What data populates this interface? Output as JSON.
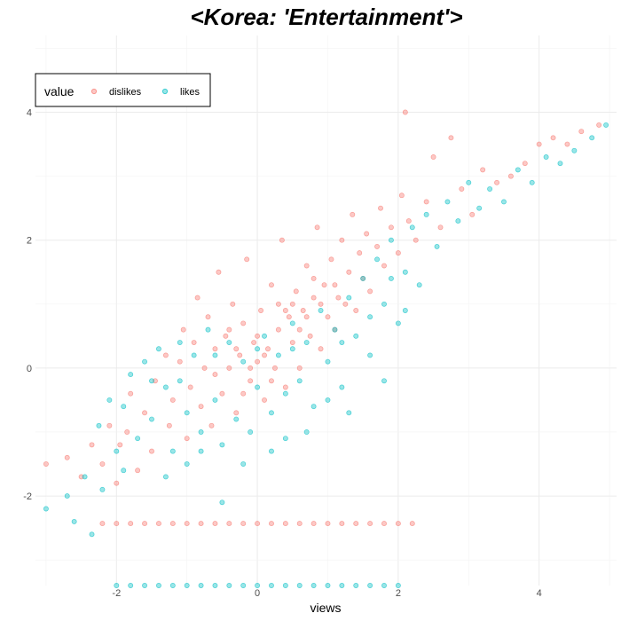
{
  "chart_data": {
    "type": "scatter",
    "title": "<Korea: 'Entertainment'>",
    "xlabel": "views",
    "ylabel": "",
    "xlim": [
      -3.15,
      5.1
    ],
    "ylim": [
      -3.4,
      5.2
    ],
    "x_ticks": [
      -2,
      0,
      2,
      4
    ],
    "y_ticks": [
      -2,
      0,
      2,
      4
    ],
    "x_tick_labels": [
      "-2",
      "0",
      "2",
      "4"
    ],
    "y_tick_labels": [
      "-2",
      "0",
      "2",
      "4"
    ],
    "grid": true,
    "legend": {
      "title": "value",
      "position": "top-left"
    },
    "series": [
      {
        "name": "dislikes",
        "color": "#F8766D",
        "points": [
          [
            -3.0,
            -1.5
          ],
          [
            -2.7,
            -1.4
          ],
          [
            -2.5,
            -1.7
          ],
          [
            -2.35,
            -1.2
          ],
          [
            -2.2,
            -1.5
          ],
          [
            -2.1,
            -0.9
          ],
          [
            -2.0,
            -1.8
          ],
          [
            -1.95,
            -1.2
          ],
          [
            -1.85,
            -1.0
          ],
          [
            -1.8,
            -0.4
          ],
          [
            -1.7,
            -1.6
          ],
          [
            -1.6,
            -0.7
          ],
          [
            -1.5,
            -1.3
          ],
          [
            -1.45,
            -0.2
          ],
          [
            -1.3,
            0.2
          ],
          [
            -1.25,
            -0.9
          ],
          [
            -1.2,
            -0.5
          ],
          [
            -1.1,
            0.1
          ],
          [
            -1.05,
            0.6
          ],
          [
            -1.0,
            -1.1
          ],
          [
            -0.95,
            -0.3
          ],
          [
            -0.9,
            0.4
          ],
          [
            -0.85,
            1.1
          ],
          [
            -0.8,
            -0.6
          ],
          [
            -0.75,
            0.0
          ],
          [
            -0.7,
            0.8
          ],
          [
            -0.65,
            -0.9
          ],
          [
            -0.6,
            0.3
          ],
          [
            -0.55,
            1.5
          ],
          [
            -0.5,
            -0.4
          ],
          [
            -0.45,
            0.5
          ],
          [
            -0.4,
            0.0
          ],
          [
            -0.35,
            1.0
          ],
          [
            -0.3,
            -0.7
          ],
          [
            -0.25,
            0.2
          ],
          [
            -0.2,
            0.7
          ],
          [
            -0.15,
            1.7
          ],
          [
            -0.1,
            -0.2
          ],
          [
            -0.05,
            0.4
          ],
          [
            0.0,
            0.1
          ],
          [
            0.05,
            0.9
          ],
          [
            0.1,
            -0.5
          ],
          [
            0.15,
            0.3
          ],
          [
            0.2,
            1.3
          ],
          [
            0.25,
            0.0
          ],
          [
            0.3,
            0.6
          ],
          [
            0.35,
            2.0
          ],
          [
            0.4,
            -0.3
          ],
          [
            0.45,
            0.8
          ],
          [
            0.5,
            0.4
          ],
          [
            0.55,
            1.2
          ],
          [
            0.6,
            0.0
          ],
          [
            0.65,
            0.9
          ],
          [
            0.7,
            1.6
          ],
          [
            0.75,
            0.5
          ],
          [
            0.8,
            1.1
          ],
          [
            0.85,
            2.2
          ],
          [
            0.9,
            0.3
          ],
          [
            0.95,
            1.3
          ],
          [
            1.0,
            0.8
          ],
          [
            1.05,
            1.7
          ],
          [
            1.1,
            0.6
          ],
          [
            1.15,
            1.1
          ],
          [
            1.2,
            2.0
          ],
          [
            1.25,
            1.0
          ],
          [
            1.3,
            1.5
          ],
          [
            1.35,
            2.4
          ],
          [
            1.4,
            0.9
          ],
          [
            1.45,
            1.8
          ],
          [
            1.5,
            1.4
          ],
          [
            1.55,
            2.1
          ],
          [
            1.6,
            1.2
          ],
          [
            1.7,
            1.9
          ],
          [
            1.75,
            2.5
          ],
          [
            1.8,
            1.6
          ],
          [
            1.9,
            2.2
          ],
          [
            2.0,
            1.8
          ],
          [
            2.05,
            2.7
          ],
          [
            2.1,
            4.0
          ],
          [
            2.15,
            2.3
          ],
          [
            2.25,
            2.0
          ],
          [
            2.4,
            2.6
          ],
          [
            2.5,
            3.3
          ],
          [
            2.6,
            2.2
          ],
          [
            2.75,
            3.6
          ],
          [
            2.9,
            2.8
          ],
          [
            3.05,
            2.4
          ],
          [
            3.2,
            3.1
          ],
          [
            3.4,
            2.9
          ],
          [
            3.6,
            3.0
          ],
          [
            3.8,
            3.2
          ],
          [
            4.0,
            3.5
          ],
          [
            4.2,
            3.6
          ],
          [
            4.4,
            3.5
          ],
          [
            4.6,
            3.7
          ],
          [
            4.85,
            3.8
          ],
          [
            -0.6,
            -0.1
          ],
          [
            -0.3,
            0.3
          ],
          [
            0.0,
            0.5
          ],
          [
            0.2,
            -0.2
          ],
          [
            0.4,
            0.9
          ],
          [
            0.6,
            0.6
          ],
          [
            0.8,
            1.4
          ],
          [
            -0.2,
            -0.4
          ],
          [
            -0.4,
            0.6
          ],
          [
            0.1,
            0.2
          ],
          [
            0.3,
            1.0
          ],
          [
            0.5,
            1.0
          ],
          [
            0.7,
            0.8
          ],
          [
            -0.1,
            0.0
          ],
          [
            0.9,
            1.0
          ],
          [
            1.1,
            1.3
          ]
        ],
        "floor_row": {
          "y": -2.43,
          "x": [
            -2.2,
            -2.0,
            -1.8,
            -1.6,
            -1.4,
            -1.2,
            -1.0,
            -0.8,
            -0.6,
            -0.4,
            -0.2,
            0.0,
            0.2,
            0.4,
            0.6,
            0.8,
            1.0,
            1.2,
            1.4,
            1.6,
            1.8,
            2.0,
            2.2
          ]
        }
      },
      {
        "name": "likes",
        "color": "#00BFC4",
        "points": [
          [
            -3.0,
            -2.2
          ],
          [
            -2.7,
            -2.0
          ],
          [
            -2.45,
            -1.7
          ],
          [
            -2.35,
            -2.6
          ],
          [
            -2.25,
            -0.9
          ],
          [
            -2.1,
            -0.5
          ],
          [
            -2.0,
            -1.3
          ],
          [
            -1.9,
            -0.6
          ],
          [
            -1.8,
            -0.1
          ],
          [
            -1.7,
            -1.1
          ],
          [
            -1.6,
            0.1
          ],
          [
            -1.5,
            -0.8
          ],
          [
            -1.4,
            0.3
          ],
          [
            -1.3,
            -0.3
          ],
          [
            -1.2,
            -1.3
          ],
          [
            -1.1,
            0.4
          ],
          [
            -1.0,
            -0.7
          ],
          [
            -0.9,
            0.2
          ],
          [
            -0.8,
            -1.0
          ],
          [
            -0.7,
            0.6
          ],
          [
            -0.6,
            -0.5
          ],
          [
            -0.5,
            -1.2
          ],
          [
            -0.4,
            0.4
          ],
          [
            -0.3,
            -0.8
          ],
          [
            -0.2,
            0.1
          ],
          [
            -0.1,
            -1.0
          ],
          [
            0.0,
            -0.3
          ],
          [
            0.1,
            0.5
          ],
          [
            0.2,
            -0.7
          ],
          [
            0.3,
            0.2
          ],
          [
            0.4,
            -0.4
          ],
          [
            0.5,
            0.7
          ],
          [
            0.6,
            -0.2
          ],
          [
            0.7,
            0.4
          ],
          [
            0.8,
            -0.6
          ],
          [
            0.9,
            0.9
          ],
          [
            1.0,
            0.1
          ],
          [
            1.1,
            0.6
          ],
          [
            1.2,
            -0.3
          ],
          [
            1.3,
            1.1
          ],
          [
            1.4,
            0.5
          ],
          [
            1.5,
            1.4
          ],
          [
            1.6,
            0.8
          ],
          [
            1.7,
            1.7
          ],
          [
            1.8,
            1.0
          ],
          [
            1.9,
            2.0
          ],
          [
            2.0,
            0.7
          ],
          [
            2.1,
            1.5
          ],
          [
            2.2,
            2.2
          ],
          [
            2.3,
            1.3
          ],
          [
            2.4,
            2.4
          ],
          [
            2.55,
            1.9
          ],
          [
            2.7,
            2.6
          ],
          [
            2.85,
            2.3
          ],
          [
            3.0,
            2.9
          ],
          [
            3.15,
            2.5
          ],
          [
            3.3,
            2.8
          ],
          [
            3.5,
            2.6
          ],
          [
            3.7,
            3.1
          ],
          [
            3.9,
            2.9
          ],
          [
            4.1,
            3.3
          ],
          [
            4.3,
            3.2
          ],
          [
            4.5,
            3.4
          ],
          [
            4.75,
            3.6
          ],
          [
            4.95,
            3.8
          ],
          [
            -2.6,
            -2.4
          ],
          [
            -2.2,
            -1.9
          ],
          [
            -1.9,
            -1.6
          ],
          [
            -1.3,
            -1.7
          ],
          [
            -1.0,
            -1.5
          ],
          [
            -0.5,
            -2.1
          ],
          [
            0.2,
            -1.3
          ],
          [
            0.7,
            -1.0
          ],
          [
            1.3,
            -0.7
          ],
          [
            1.8,
            -0.2
          ],
          [
            -0.8,
            -1.3
          ],
          [
            -0.2,
            -1.5
          ],
          [
            0.4,
            -1.1
          ],
          [
            1.0,
            -0.5
          ],
          [
            1.6,
            0.2
          ],
          [
            -1.5,
            -0.2
          ],
          [
            -1.1,
            -0.2
          ],
          [
            -0.6,
            0.2
          ],
          [
            0.0,
            0.3
          ],
          [
            0.5,
            0.3
          ],
          [
            1.2,
            0.4
          ],
          [
            1.9,
            1.4
          ],
          [
            2.1,
            0.9
          ]
        ],
        "floor_row": {
          "y": -3.4,
          "x": [
            -2.0,
            -1.8,
            -1.6,
            -1.4,
            -1.2,
            -1.0,
            -0.8,
            -0.6,
            -0.4,
            -0.2,
            0.0,
            0.2,
            0.4,
            0.6,
            0.8,
            1.0,
            1.2,
            1.4,
            1.6,
            1.8,
            2.0
          ]
        }
      }
    ]
  }
}
